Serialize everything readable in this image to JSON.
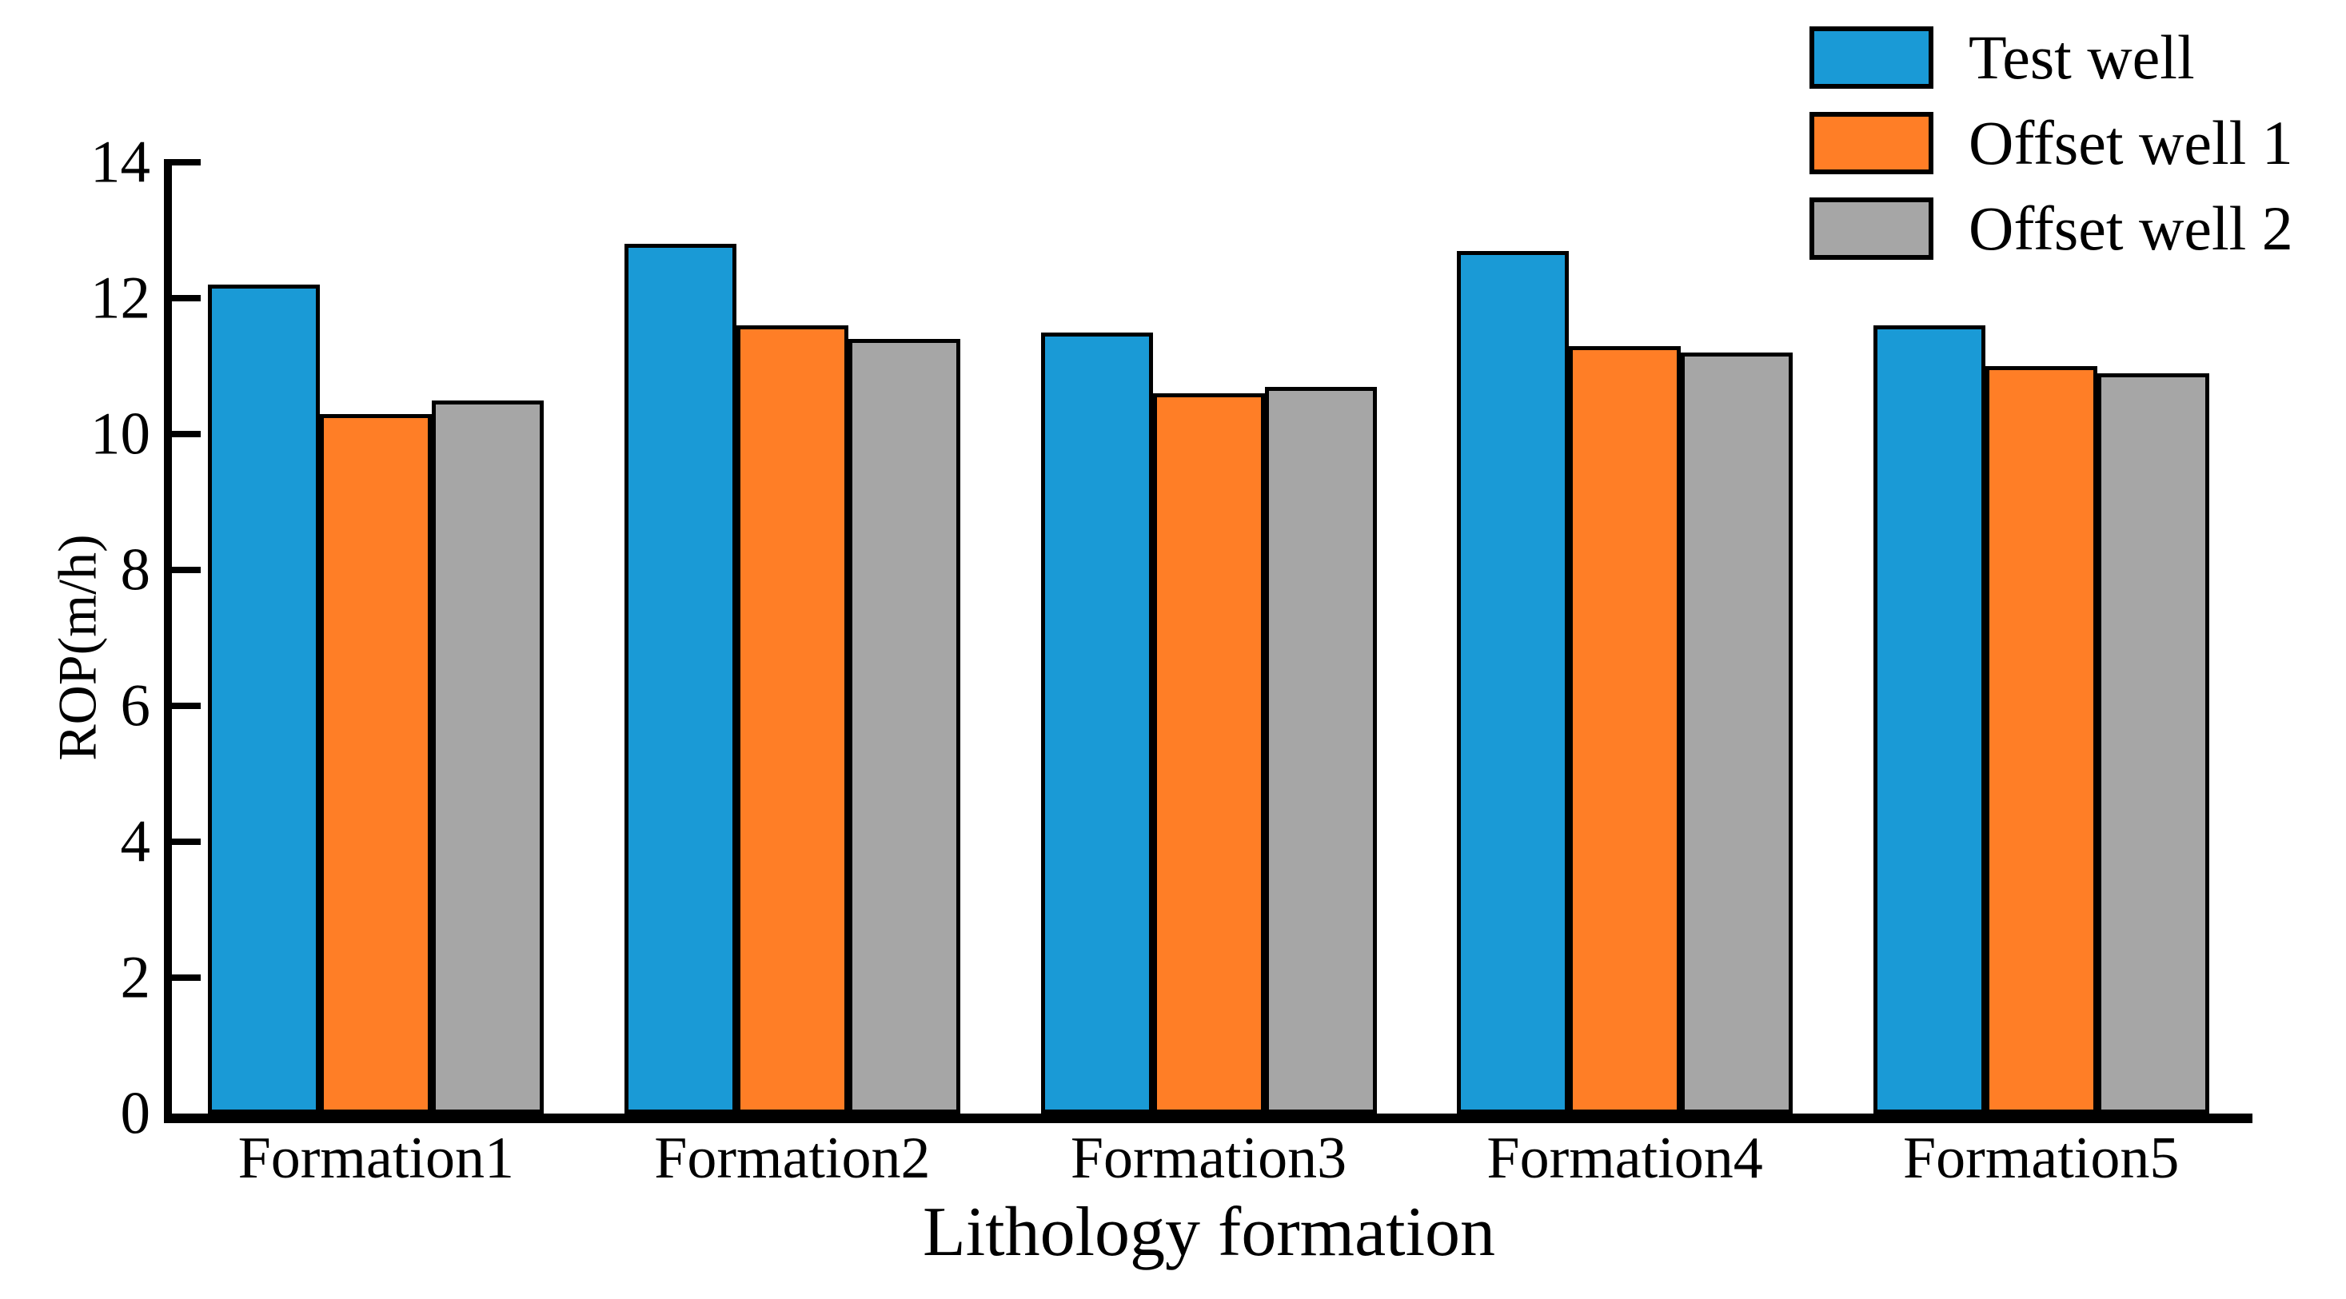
{
  "figure": {
    "background_color": "#ffffff",
    "text_color": "#000000"
  },
  "chart_data": {
    "type": "bar",
    "title": "",
    "xlabel": "Lithology formation",
    "ylabel": "ROP(m/h)",
    "categories": [
      "Formation1",
      "Formation2",
      "Formation3",
      "Formation4",
      "Formation5"
    ],
    "series": [
      {
        "name": "Test well",
        "color": "#1a9ad6",
        "values": [
          12.2,
          12.8,
          11.5,
          12.7,
          11.6
        ]
      },
      {
        "name": "Offset well 1",
        "color": "#ff7e26",
        "values": [
          10.3,
          11.6,
          10.6,
          11.3,
          11.0
        ]
      },
      {
        "name": "Offset well 2",
        "color": "#a6a6a6",
        "values": [
          10.5,
          11.4,
          10.7,
          11.2,
          10.9
        ]
      }
    ],
    "ylim": [
      0,
      14
    ],
    "yticks": [
      0,
      2,
      4,
      6,
      8,
      10,
      12,
      14
    ],
    "grid": false,
    "legend_position": "top-right",
    "bar_border_color": "#000000"
  }
}
